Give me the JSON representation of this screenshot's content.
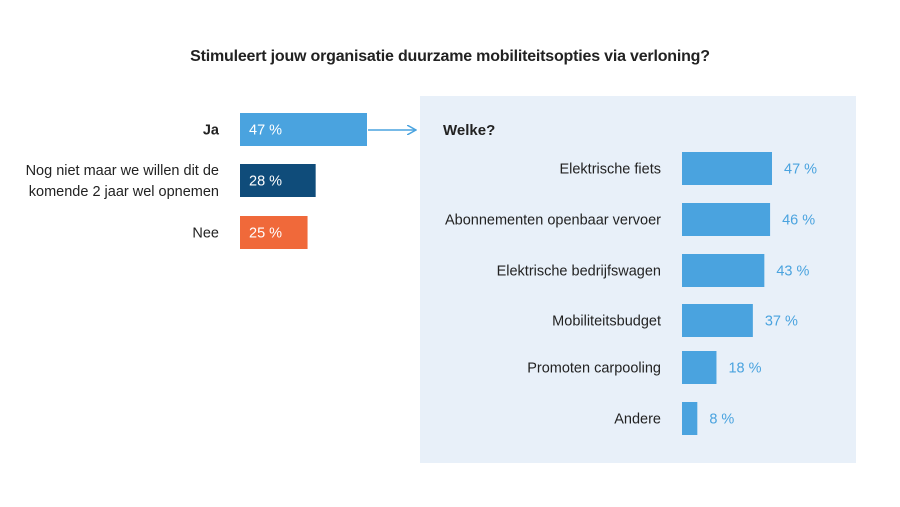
{
  "chart_data": [
    {
      "type": "bar",
      "orientation": "horizontal",
      "title": "Stimuleert jouw organisatie duurzame mobiliteitsopties via verloning?",
      "categories": [
        [
          "Ja"
        ],
        [
          "Nog niet maar we willen dit de",
          "komende 2 jaar wel opnemen"
        ],
        [
          "Nee"
        ]
      ],
      "values": [
        47,
        28,
        25
      ],
      "value_labels": [
        "47 %",
        "28 %",
        "25 %"
      ],
      "colors": [
        "#4aa3df",
        "#0f4c7a",
        "#f0693a"
      ],
      "xlim": [
        0,
        100
      ]
    },
    {
      "type": "bar",
      "orientation": "horizontal",
      "title": "Welke?",
      "categories": [
        "Elektrische fiets",
        "Abonnementen openbaar vervoer",
        "Elektrische bedrijfswagen",
        "Mobiliteitsbudget",
        "Promoten carpooling",
        "Andere"
      ],
      "values": [
        47,
        46,
        43,
        37,
        18,
        8
      ],
      "value_labels": [
        "47 %",
        "46 %",
        "43 %",
        "37 %",
        "18 %",
        "8 %"
      ],
      "color": "#4aa3df",
      "panel_color": "#e8f0f9",
      "xlim": [
        0,
        100
      ]
    }
  ]
}
